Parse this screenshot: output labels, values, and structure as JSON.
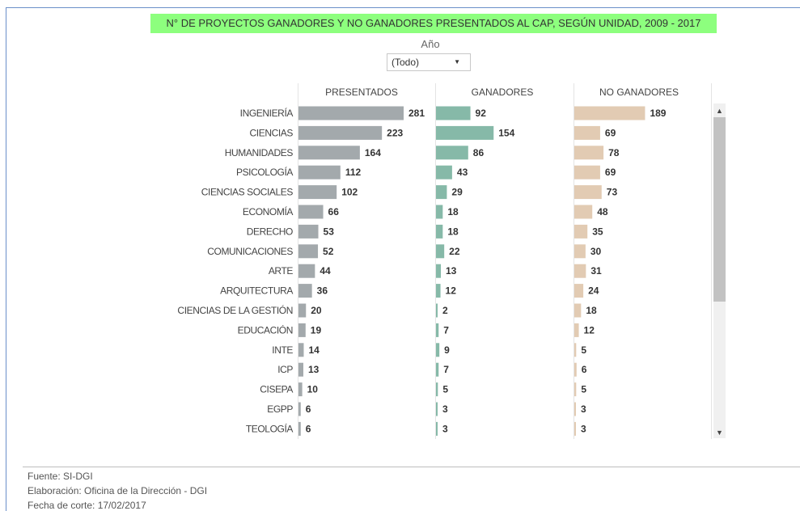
{
  "title": "N° DE PROYECTOS GANADORES Y NO GANADORES PRESENTADOS AL CAP,  SEGÚN UNIDAD, 2009 - 2017",
  "filter": {
    "label": "Año",
    "selected": "(Todo)"
  },
  "scrollbar": {
    "up_icon": "▲",
    "down_icon": "▼"
  },
  "colors": {
    "presentados": "#a3a9ac",
    "ganadores": "#86b9a8",
    "no_ganadores": "#e2cbb3",
    "title_bg": "#8dff7e"
  },
  "chart_data": {
    "type": "bar",
    "orientation": "horizontal",
    "categories": [
      "INGENIERÍA",
      "CIENCIAS",
      "HUMANIDADES",
      "PSICOLOGÍA",
      "CIENCIAS SOCIALES",
      "ECONOMÍA",
      "DERECHO",
      "COMUNICACIONES",
      "ARTE",
      "ARQUITECTURA",
      "CIENCIAS DE LA GESTIÓN",
      "EDUCACIÓN",
      "INTE",
      "ICP",
      "CISEPA",
      "EGPP",
      "TEOLOGÍA"
    ],
    "series": [
      {
        "name": "PRESENTADOS",
        "values": [
          281,
          223,
          164,
          112,
          102,
          66,
          53,
          52,
          44,
          36,
          20,
          19,
          14,
          13,
          10,
          6,
          6
        ]
      },
      {
        "name": "GANADORES",
        "values": [
          92,
          154,
          86,
          43,
          29,
          18,
          18,
          22,
          13,
          12,
          2,
          7,
          9,
          7,
          5,
          3,
          3
        ]
      },
      {
        "name": "NO GANADORES",
        "values": [
          189,
          69,
          78,
          69,
          73,
          48,
          35,
          30,
          31,
          24,
          18,
          12,
          5,
          6,
          5,
          3,
          3
        ]
      }
    ],
    "title": "N° DE PROYECTOS GANADORES Y NO GANADORES PRESENTADOS AL CAP,  SEGÚN UNIDAD, 2009 - 2017",
    "xlabel": "",
    "ylabel": "",
    "grid": false,
    "data_labels": true
  },
  "footer": {
    "fuente": "Fuente: SI-DGI",
    "elaboracion": "Elaboración: Oficina de la Dirección - DGI",
    "fecha": "Fecha de corte: 17/02/2017"
  }
}
